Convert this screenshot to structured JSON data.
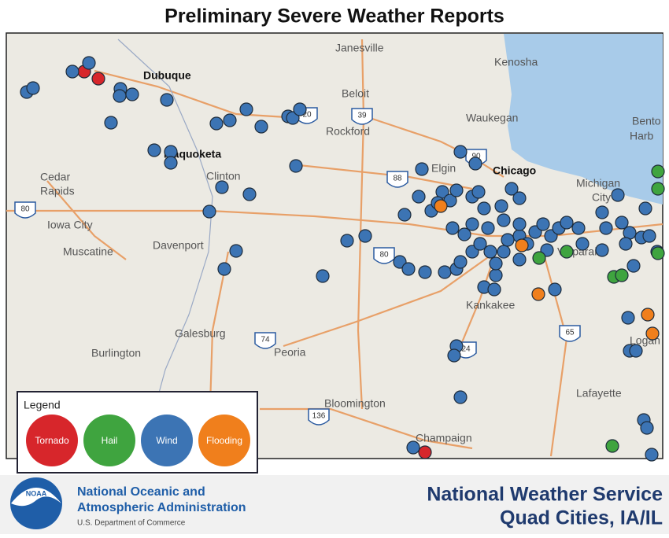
{
  "title": "Preliminary Severe Weather Reports",
  "map": {
    "places": [
      "Janesville",
      "Kenosha",
      "Dubuque",
      "Beloit",
      "Waukegan",
      "Rockford",
      "Bento",
      "Harb",
      "Maquoketa",
      "Elgin",
      "Chicago",
      "Cedar",
      "Rapids",
      "Clinton",
      "Michigan",
      "City",
      "Iowa City",
      "Muscatine",
      "Davenport",
      "Valparaiso",
      "Kankakee",
      "Galesburg",
      "Peoria",
      "Burlington",
      "Logan",
      "Lafayette",
      "Bloomington",
      "Champaign"
    ],
    "highways": [
      "80",
      "39",
      "20",
      "90",
      "88",
      "80",
      "74",
      "24",
      "65",
      "136"
    ]
  },
  "legend": {
    "title": "Legend",
    "items": [
      {
        "label": "Tornado",
        "color": "#d7262b"
      },
      {
        "label": "Hail",
        "color": "#3fa43f"
      },
      {
        "label": "Wind",
        "color": "#3c74b4"
      },
      {
        "label": "Flooding",
        "color": "#f07f1c"
      }
    ]
  },
  "footer": {
    "logo": "NOAA",
    "agency_line1": "National Oceanic and",
    "agency_line2": "Atmospheric Administration",
    "department": "U.S. Department of Commerce",
    "service": "National Weather Service",
    "office": "Quad Cities, IA/IL"
  }
}
